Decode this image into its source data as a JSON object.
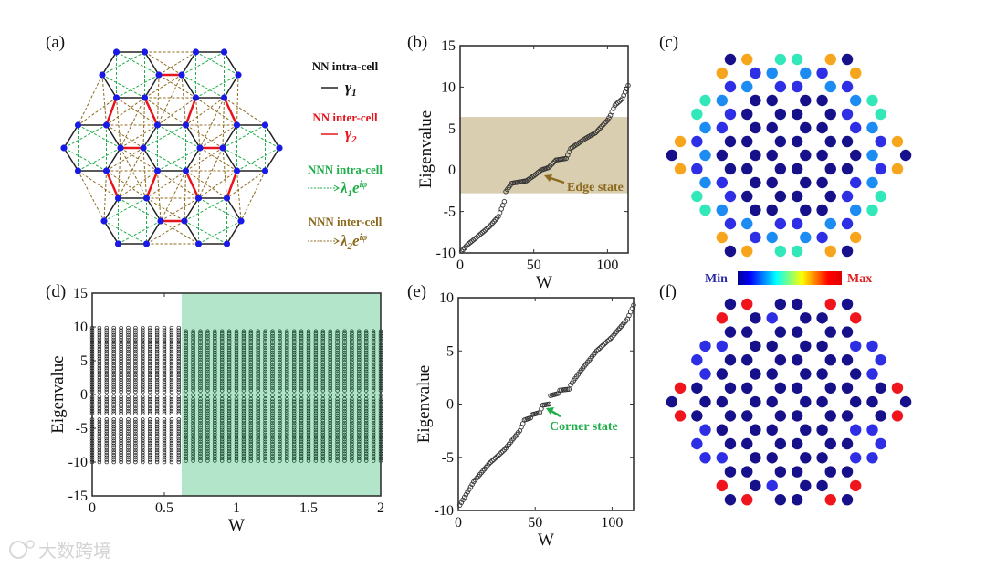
{
  "panel_labels": [
    "(a)",
    "(b)",
    "(c)",
    "(d)",
    "(e)",
    "(f)"
  ],
  "watermark": "大数跨境",
  "colors": {
    "intra_nn": "#222222",
    "inter_nn": "#e8141c",
    "nnn_intra": "#1fae4a",
    "nnn_inter": "#8b6a1e",
    "site": "#1a1ae6",
    "edge_band": "#d9ceb0",
    "bulk_band": "#b2e5c9",
    "N": "#16108a",
    "B": "#2e2ee4",
    "L": "#1c8cf2",
    "C": "#33e8b8",
    "O": "#f7a51c",
    "R": "#f0141c"
  },
  "legend": {
    "nn_intra": {
      "label": "NN intra-cell",
      "symbol": "γ",
      "sub": "1"
    },
    "nn_inter": {
      "label": "NN inter-cell",
      "symbol": "γ",
      "sub": "2"
    },
    "nnn_intra": {
      "label": "NNN intra-cell",
      "symbol": "λ",
      "sub": "1",
      "tail": "e",
      "sup": "iφ"
    },
    "nnn_inter": {
      "label": "NNN inter-cell",
      "symbol": "λ",
      "sub": "2",
      "tail": "e",
      "sup": "iφ"
    }
  },
  "chart_data": [
    {
      "panel": "b",
      "type": "scatter",
      "xlabel": "W",
      "ylabel": "Eigenvalue",
      "xlim": [
        0,
        114
      ],
      "ylim": [
        -10,
        15
      ],
      "xticks": [
        "0",
        "50",
        "100"
      ],
      "xtick_values": [
        0,
        50,
        100
      ],
      "yticks": [
        "-10",
        "-5",
        "0",
        "5",
        "10",
        "15"
      ],
      "ytick_values": [
        -10,
        -5,
        0,
        5,
        10,
        15
      ],
      "n_points": 114,
      "anchors": [
        [
          1,
          -9.8
        ],
        [
          5,
          -9.0
        ],
        [
          10,
          -8.3
        ],
        [
          20,
          -6.8
        ],
        [
          26,
          -5.6
        ],
        [
          30,
          -3.8
        ],
        [
          31,
          -2.6
        ],
        [
          35,
          -1.6
        ],
        [
          45,
          -1.3
        ],
        [
          50,
          -0.7
        ],
        [
          55,
          0
        ],
        [
          60,
          0.3
        ],
        [
          65,
          1.2
        ],
        [
          72,
          1.4
        ],
        [
          75,
          2.6
        ],
        [
          85,
          3.8
        ],
        [
          92,
          4.5
        ],
        [
          100,
          6.0
        ],
        [
          102,
          6.6
        ],
        [
          105,
          7.8
        ],
        [
          110,
          8.6
        ],
        [
          114,
          10.2
        ]
      ],
      "shaded_band": [
        -2.8,
        6.4
      ],
      "annotation": "Edge state"
    },
    {
      "panel": "d",
      "type": "scatter",
      "xlabel": "W",
      "ylabel": "Eigenvalue",
      "xlim": [
        0,
        2
      ],
      "ylim": [
        -15,
        15
      ],
      "xticks": [
        "0",
        "0.5",
        "1",
        "1.5",
        "2"
      ],
      "xtick_values": [
        0,
        0.5,
        1,
        1.5,
        2
      ],
      "yticks": [
        "-15",
        "-10",
        "-5",
        "0",
        "5",
        "10",
        "15"
      ],
      "ytick_values": [
        -15,
        -10,
        -5,
        0,
        5,
        10,
        15
      ],
      "w_step": 0.05,
      "shaded_from": 0.62,
      "bands_low_w": [
        [
          -10,
          -3.6
        ],
        [
          -2.8,
          -0.1
        ],
        [
          0.4,
          10
        ]
      ],
      "bands_high_w": [
        [
          -9.8,
          -0.6
        ],
        [
          -0.1,
          0.1
        ],
        [
          0.6,
          9.6
        ]
      ]
    },
    {
      "panel": "e",
      "type": "scatter",
      "xlabel": "W",
      "ylabel": "Eigenvalue",
      "xlim": [
        0,
        114
      ],
      "ylim": [
        -10,
        10
      ],
      "xticks": [
        "0",
        "50",
        "100"
      ],
      "xtick_values": [
        0,
        50,
        100
      ],
      "yticks": [
        "-10",
        "-5",
        "0",
        "5",
        "10"
      ],
      "ytick_values": [
        -10,
        -5,
        0,
        5,
        10
      ],
      "n_points": 114,
      "anchors": [
        [
          1,
          -9.5
        ],
        [
          10,
          -7.3
        ],
        [
          20,
          -5.6
        ],
        [
          30,
          -4.3
        ],
        [
          40,
          -2.5
        ],
        [
          43,
          -1.5
        ],
        [
          47,
          -1.3
        ],
        [
          48,
          -1.0
        ],
        [
          53,
          -0.8
        ],
        [
          55,
          -0.1
        ],
        [
          59,
          0
        ],
        [
          60,
          0.8
        ],
        [
          65,
          1.0
        ],
        [
          66,
          1.3
        ],
        [
          72,
          1.4
        ],
        [
          73,
          1.8
        ],
        [
          80,
          3.2
        ],
        [
          90,
          5.0
        ],
        [
          100,
          6.3
        ],
        [
          110,
          8.0
        ],
        [
          114,
          9.3
        ]
      ],
      "annotation": "Corner state"
    },
    {
      "panel": "c",
      "type": "heatmap",
      "description_codes": "N navy, B blue, L light-blue, C cyan, O orange",
      "rows": [
        "NOCCON",
        "OBLLBO",
        "BLBBLB",
        "CLNNNNLC",
        "CBNNNNBC",
        "LBNNNNBL",
        "OBNNNNNNBO",
        "NLNNNNNNLN",
        "OBNNNNNNBO",
        "LBNNNNBL",
        "CBNNNNBC",
        "CLNNNNLC",
        "BLBBLB",
        "OBLLBO",
        "NOCCON"
      ],
      "colorbar": {
        "min_label": "Min",
        "max_label": "Max"
      }
    },
    {
      "panel": "f",
      "type": "heatmap",
      "rows": [
        "NRNNRN",
        "RNBNNR",
        "NNNNNN",
        "BBNNNNBB",
        "BNNNNNNB",
        "BNNNNNNB",
        "RNNNNNNNNR",
        "NNNNNNNNNN",
        "RNNNNNNNNR",
        "BNNNNNBB",
        "BNNNNNNB",
        "BBNNNNBB",
        "NNNNNN",
        "RNBNNR",
        "NRNNRN"
      ]
    }
  ]
}
